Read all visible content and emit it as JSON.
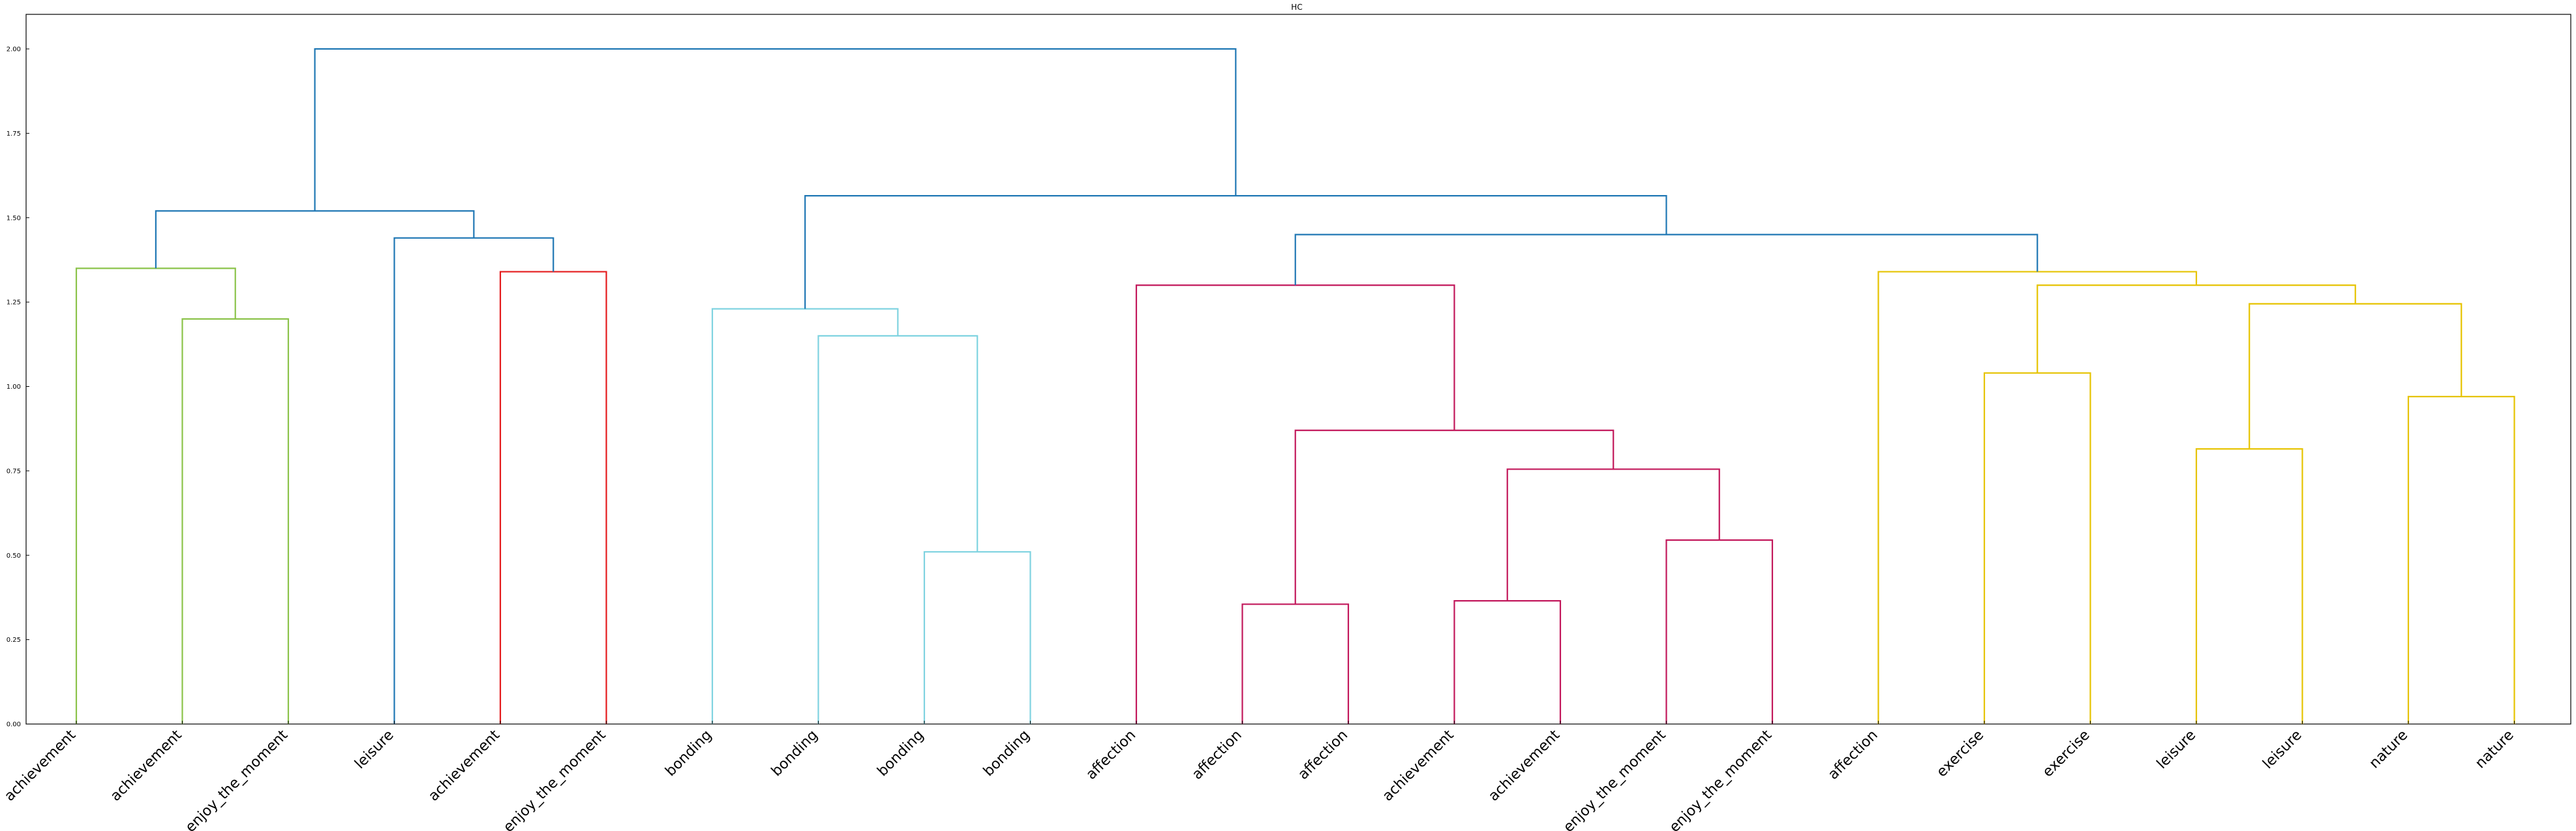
{
  "chart_data": {
    "type": "dendrogram",
    "title": "HC",
    "xlabel": "",
    "ylabel": "",
    "ylim": [
      0,
      2.1
    ],
    "yticks": [
      "0.00",
      "0.25",
      "0.50",
      "0.75",
      "1.00",
      "1.25",
      "1.50",
      "1.75",
      "2.00"
    ],
    "grid": false,
    "leaves": [
      "achievement",
      "achievement",
      "enjoy_the_moment",
      "leisure",
      "achievement",
      "enjoy_the_moment",
      "bonding",
      "bonding",
      "bonding",
      "bonding",
      "affection",
      "affection",
      "affection",
      "achievement",
      "achievement",
      "enjoy_the_moment",
      "enjoy_the_moment",
      "affection",
      "exercise",
      "exercise",
      "leisure",
      "leisure",
      "nature",
      "nature"
    ],
    "colors": {
      "green": "#8bc34a",
      "red": "#e41a1c",
      "cyan": "#7fd3e0",
      "magenta": "#c2185b",
      "gold": "#e6c300",
      "blue": "#1f77b4"
    },
    "merges": [
      {
        "left": 1,
        "right": 2,
        "height": 1.2,
        "color": "green"
      },
      {
        "left": 0,
        "right": "m0",
        "height": 1.35,
        "color": "green"
      },
      {
        "left": 4,
        "right": 5,
        "height": 1.34,
        "color": "red"
      },
      {
        "left": 3,
        "right": "m2",
        "height": 1.44,
        "color": "blue"
      },
      {
        "left": "m1",
        "right": "m3",
        "height": 1.52,
        "color": "blue"
      },
      {
        "left": 8,
        "right": 9,
        "height": 0.51,
        "color": "cyan"
      },
      {
        "left": 7,
        "right": "m5",
        "height": 1.15,
        "color": "cyan"
      },
      {
        "left": 6,
        "right": "m6",
        "height": 1.23,
        "color": "cyan"
      },
      {
        "left": 11,
        "right": 12,
        "height": 0.355,
        "color": "magenta"
      },
      {
        "left": 13,
        "right": 14,
        "height": 0.365,
        "color": "magenta"
      },
      {
        "left": 15,
        "right": 16,
        "height": 0.545,
        "color": "magenta"
      },
      {
        "left": "m9",
        "right": "m10",
        "height": 0.755,
        "color": "magenta"
      },
      {
        "left": "m8",
        "right": "m11",
        "height": 0.87,
        "color": "magenta"
      },
      {
        "left": 10,
        "right": "m12",
        "height": 1.3,
        "color": "magenta"
      },
      {
        "left": 18,
        "right": 19,
        "height": 1.04,
        "color": "gold"
      },
      {
        "left": 20,
        "right": 21,
        "height": 0.815,
        "color": "gold"
      },
      {
        "left": 22,
        "right": 23,
        "height": 0.97,
        "color": "gold"
      },
      {
        "left": "m15",
        "right": "m16",
        "height": 1.245,
        "color": "gold"
      },
      {
        "left": "m14",
        "right": "m17",
        "height": 1.3,
        "color": "gold"
      },
      {
        "left": 17,
        "right": "m18",
        "height": 1.34,
        "color": "gold"
      },
      {
        "left": "m13",
        "right": "m19",
        "height": 1.45,
        "color": "blue"
      },
      {
        "left": "m7",
        "right": "m20",
        "height": 1.565,
        "color": "blue"
      },
      {
        "left": "m4",
        "right": "m21",
        "height": 2.0,
        "color": "blue"
      }
    ]
  }
}
